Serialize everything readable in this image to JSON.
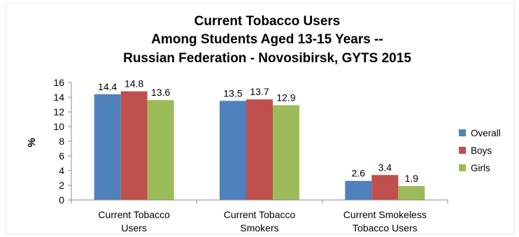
{
  "chart_data": {
    "type": "bar",
    "title": [
      "Current Tobacco Users",
      "Among Students Aged 13-15 Years --",
      "Russian Federation - Novosibirsk, GYTS 2015"
    ],
    "xlabel": "",
    "ylabel": "%",
    "ylim": [
      0,
      16
    ],
    "yticks": [
      "0",
      "2",
      "4",
      "6",
      "8",
      "10",
      "12",
      "14",
      "16"
    ],
    "grid": false,
    "legend_position": "right",
    "categories": [
      [
        "Current Tobacco",
        "Users"
      ],
      [
        "Current Tobacco",
        "Smokers"
      ],
      [
        "Current Smokeless",
        "Tobacco Users"
      ]
    ],
    "series": [
      {
        "name": "Overall",
        "color": "#4F81BD",
        "values": [
          14.4,
          13.5,
          2.6
        ],
        "labels": [
          "14.4",
          "13.5",
          "2.6"
        ]
      },
      {
        "name": "Boys",
        "color": "#C0504D",
        "values": [
          14.8,
          13.7,
          3.4
        ],
        "labels": [
          "14.8",
          "13.7",
          "3.4"
        ]
      },
      {
        "name": "Girls",
        "color": "#9BBB59",
        "values": [
          13.6,
          12.9,
          1.9
        ],
        "labels": [
          "13.6",
          "12.9",
          "1.9"
        ]
      }
    ]
  }
}
